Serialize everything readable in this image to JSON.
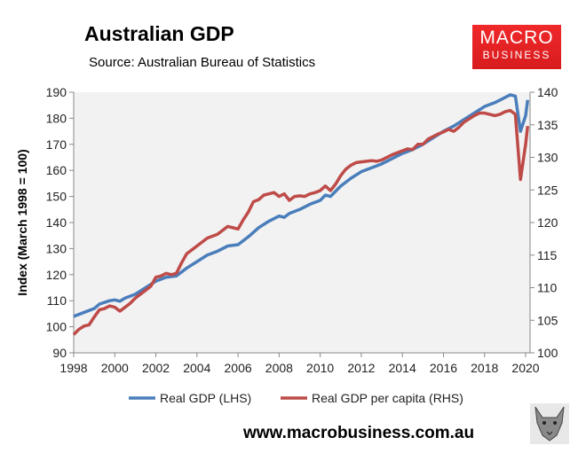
{
  "header": {
    "title": "Australian GDP",
    "source": "Source: Australian Bureau of Statistics"
  },
  "logo": {
    "line1": "MACRO",
    "line2": "BUSINESS"
  },
  "footer": {
    "url": "www.macrobusiness.com.au"
  },
  "chart_data": {
    "type": "line",
    "title": "Australian GDP",
    "ylabel": "Index (March 1998 = 100)",
    "ylim": [
      90,
      190
    ],
    "y2lim": [
      100,
      140
    ],
    "yticks": [
      90,
      100,
      110,
      120,
      130,
      140,
      150,
      160,
      170,
      180,
      190
    ],
    "y2ticks": [
      100,
      105,
      110,
      115,
      120,
      125,
      130,
      135,
      140
    ],
    "xlim": [
      1998,
      2020
    ],
    "xticks": [
      1998,
      2000,
      2002,
      2004,
      2006,
      2008,
      2010,
      2012,
      2014,
      2016,
      2018,
      2020
    ],
    "grid": false,
    "legend": "bottom",
    "colors": {
      "lhs": "#4a7ebb",
      "rhs": "#be4b48",
      "plot_bg": "#f2f2f2"
    },
    "series": [
      {
        "name": "Real GDP (LHS)",
        "axis": "left",
        "points": [
          [
            1998,
            104
          ],
          [
            1998.5,
            105.5
          ],
          [
            1999,
            107
          ],
          [
            1999.25,
            108.7
          ],
          [
            1999.75,
            110
          ],
          [
            2000,
            110.3
          ],
          [
            2000.25,
            109.8
          ],
          [
            2000.5,
            111
          ],
          [
            2001,
            112.5
          ],
          [
            2001.5,
            115
          ],
          [
            2002,
            117.5
          ],
          [
            2002.5,
            119
          ],
          [
            2003,
            119.5
          ],
          [
            2003.5,
            122.5
          ],
          [
            2004,
            125
          ],
          [
            2004.5,
            127.5
          ],
          [
            2005,
            129
          ],
          [
            2005.5,
            131
          ],
          [
            2006,
            131.5
          ],
          [
            2006.5,
            134.5
          ],
          [
            2007,
            138
          ],
          [
            2007.5,
            140.5
          ],
          [
            2008,
            142.5
          ],
          [
            2008.25,
            142
          ],
          [
            2008.5,
            143.5
          ],
          [
            2009,
            145
          ],
          [
            2009.5,
            147
          ],
          [
            2010,
            148.5
          ],
          [
            2010.25,
            150.5
          ],
          [
            2010.5,
            150
          ],
          [
            2011,
            154
          ],
          [
            2011.5,
            157
          ],
          [
            2012,
            159.5
          ],
          [
            2012.5,
            161
          ],
          [
            2013,
            162.5
          ],
          [
            2013.5,
            164.5
          ],
          [
            2014,
            166.5
          ],
          [
            2014.5,
            168
          ],
          [
            2015,
            170
          ],
          [
            2015.5,
            172.5
          ],
          [
            2016,
            175
          ],
          [
            2016.5,
            177
          ],
          [
            2017,
            179.5
          ],
          [
            2017.5,
            182
          ],
          [
            2018,
            184.5
          ],
          [
            2018.5,
            186
          ],
          [
            2019,
            188
          ],
          [
            2019.25,
            189
          ],
          [
            2019.5,
            188.5
          ],
          [
            2019.75,
            175
          ],
          [
            2020,
            181
          ],
          [
            2020.1,
            187
          ]
        ]
      },
      {
        "name": "Real GDP per capita (RHS)",
        "axis": "right",
        "points": [
          [
            1998,
            102.8
          ],
          [
            1998.25,
            103.6
          ],
          [
            1998.5,
            104.1
          ],
          [
            1998.75,
            104.3
          ],
          [
            1999,
            105.5
          ],
          [
            1999.25,
            106.6
          ],
          [
            1999.5,
            106.8
          ],
          [
            1999.75,
            107.2
          ],
          [
            2000,
            107
          ],
          [
            2000.25,
            106.4
          ],
          [
            2000.5,
            107
          ],
          [
            2000.75,
            107.6
          ],
          [
            2001,
            108.4
          ],
          [
            2001.5,
            109.6
          ],
          [
            2001.75,
            110.2
          ],
          [
            2002,
            111.6
          ],
          [
            2002.25,
            111.8
          ],
          [
            2002.5,
            112.2
          ],
          [
            2002.75,
            112
          ],
          [
            2003,
            112.2
          ],
          [
            2003.25,
            113.8
          ],
          [
            2003.5,
            115.2
          ],
          [
            2004,
            116.4
          ],
          [
            2004.5,
            117.6
          ],
          [
            2005,
            118.2
          ],
          [
            2005.5,
            119.4
          ],
          [
            2005.75,
            119.2
          ],
          [
            2006,
            119
          ],
          [
            2006.25,
            120.4
          ],
          [
            2006.5,
            121.6
          ],
          [
            2006.75,
            123.2
          ],
          [
            2007,
            123.5
          ],
          [
            2007.25,
            124.2
          ],
          [
            2007.5,
            124.4
          ],
          [
            2007.75,
            124.6
          ],
          [
            2008,
            124
          ],
          [
            2008.25,
            124.4
          ],
          [
            2008.5,
            123.4
          ],
          [
            2008.75,
            124
          ],
          [
            2009,
            124.1
          ],
          [
            2009.25,
            124
          ],
          [
            2009.5,
            124.4
          ],
          [
            2009.75,
            124.6
          ],
          [
            2010,
            124.9
          ],
          [
            2010.25,
            125.6
          ],
          [
            2010.5,
            124.9
          ],
          [
            2010.75,
            125.9
          ],
          [
            2011,
            127.2
          ],
          [
            2011.25,
            128.2
          ],
          [
            2011.5,
            128.8
          ],
          [
            2011.75,
            129.2
          ],
          [
            2012,
            129.3
          ],
          [
            2012.5,
            129.5
          ],
          [
            2012.75,
            129.4
          ],
          [
            2013,
            129.6
          ],
          [
            2013.5,
            130.4
          ],
          [
            2014,
            131
          ],
          [
            2014.25,
            131.3
          ],
          [
            2014.5,
            131.2
          ],
          [
            2014.75,
            132
          ],
          [
            2015,
            132
          ],
          [
            2015.25,
            132.8
          ],
          [
            2015.75,
            133.6
          ],
          [
            2016,
            133.9
          ],
          [
            2016.25,
            134.3
          ],
          [
            2016.5,
            134
          ],
          [
            2016.75,
            134.6
          ],
          [
            2017,
            135.4
          ],
          [
            2017.5,
            136.4
          ],
          [
            2017.75,
            136.8
          ],
          [
            2018,
            136.8
          ],
          [
            2018.5,
            136.4
          ],
          [
            2018.75,
            136.6
          ],
          [
            2019,
            137
          ],
          [
            2019.25,
            137.2
          ],
          [
            2019.5,
            136.6
          ],
          [
            2019.75,
            126.6
          ],
          [
            2020,
            132
          ],
          [
            2020.1,
            134.8
          ]
        ]
      }
    ]
  }
}
